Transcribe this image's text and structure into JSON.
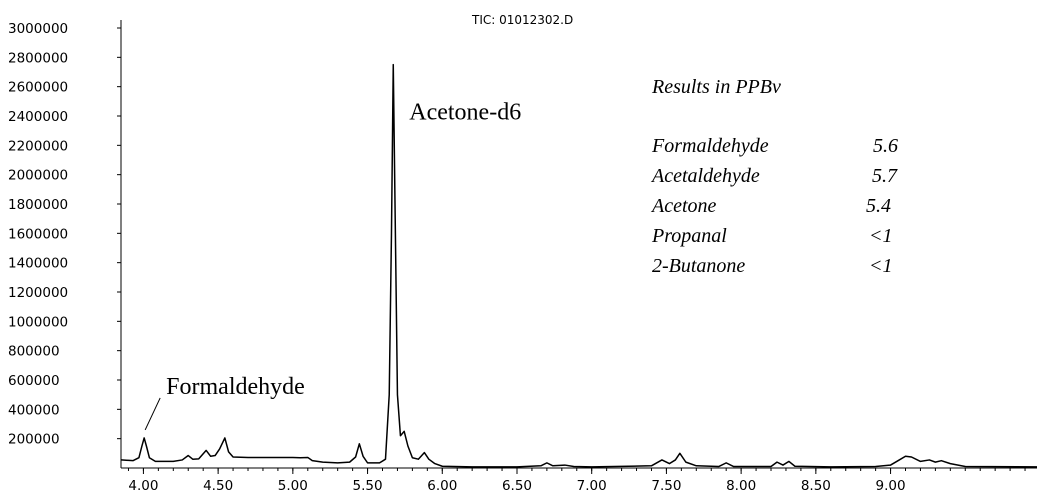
{
  "chart_data": {
    "type": "line",
    "title": "TIC: 01012302.D",
    "xlabel": "",
    "ylabel": "",
    "xlim": [
      3.85,
      9.98
    ],
    "ylim": [
      0,
      3000000
    ],
    "x_ticks": [
      "4.00",
      "4.50",
      "5.00",
      "5.50",
      "6.00",
      "6.50",
      "7.00",
      "7.50",
      "8.00",
      "8.50",
      "9.00"
    ],
    "y_ticks": [
      "200000",
      "400000",
      "600000",
      "800000",
      "1000000",
      "1200000",
      "1400000",
      "1600000",
      "1800000",
      "2000000",
      "2200000",
      "2400000",
      "2600000",
      "2800000",
      "3000000"
    ],
    "grid": false,
    "series": [
      {
        "points": [
          [
            3.85,
            55000
          ],
          [
            3.93,
            50000
          ],
          [
            3.97,
            70000
          ],
          [
            3.99,
            150000
          ],
          [
            4.005,
            205000
          ],
          [
            4.02,
            150000
          ],
          [
            4.04,
            70000
          ],
          [
            4.08,
            45000
          ],
          [
            4.2,
            45000
          ],
          [
            4.26,
            55000
          ],
          [
            4.3,
            85000
          ],
          [
            4.33,
            60000
          ],
          [
            4.37,
            62000
          ],
          [
            4.42,
            120000
          ],
          [
            4.45,
            80000
          ],
          [
            4.48,
            85000
          ],
          [
            4.51,
            130000
          ],
          [
            4.545,
            205000
          ],
          [
            4.57,
            110000
          ],
          [
            4.6,
            75000
          ],
          [
            4.7,
            72000
          ],
          [
            4.8,
            72000
          ],
          [
            4.9,
            72000
          ],
          [
            5.0,
            72000
          ],
          [
            5.05,
            70000
          ],
          [
            5.1,
            72000
          ],
          [
            5.13,
            50000
          ],
          [
            5.2,
            40000
          ],
          [
            5.3,
            35000
          ],
          [
            5.38,
            40000
          ],
          [
            5.42,
            75000
          ],
          [
            5.445,
            165000
          ],
          [
            5.47,
            80000
          ],
          [
            5.5,
            35000
          ],
          [
            5.58,
            35000
          ],
          [
            5.62,
            60000
          ],
          [
            5.645,
            500000
          ],
          [
            5.66,
            1600000
          ],
          [
            5.672,
            2750000
          ],
          [
            5.685,
            1700000
          ],
          [
            5.7,
            500000
          ],
          [
            5.72,
            220000
          ],
          [
            5.745,
            250000
          ],
          [
            5.77,
            150000
          ],
          [
            5.8,
            70000
          ],
          [
            5.84,
            60000
          ],
          [
            5.88,
            105000
          ],
          [
            5.91,
            60000
          ],
          [
            5.95,
            30000
          ],
          [
            6.0,
            12000
          ],
          [
            6.2,
            8000
          ],
          [
            6.5,
            8000
          ],
          [
            6.66,
            15000
          ],
          [
            6.7,
            35000
          ],
          [
            6.74,
            15000
          ],
          [
            6.82,
            20000
          ],
          [
            6.88,
            10000
          ],
          [
            7.0,
            8000
          ],
          [
            7.4,
            15000
          ],
          [
            7.47,
            55000
          ],
          [
            7.52,
            30000
          ],
          [
            7.56,
            55000
          ],
          [
            7.59,
            100000
          ],
          [
            7.63,
            40000
          ],
          [
            7.7,
            15000
          ],
          [
            7.85,
            10000
          ],
          [
            7.9,
            35000
          ],
          [
            7.95,
            10000
          ],
          [
            8.2,
            10000
          ],
          [
            8.24,
            40000
          ],
          [
            8.28,
            20000
          ],
          [
            8.32,
            45000
          ],
          [
            8.36,
            12000
          ],
          [
            8.6,
            8000
          ],
          [
            8.9,
            10000
          ],
          [
            9.0,
            20000
          ],
          [
            9.05,
            50000
          ],
          [
            9.1,
            80000
          ],
          [
            9.14,
            75000
          ],
          [
            9.2,
            45000
          ],
          [
            9.26,
            55000
          ],
          [
            9.3,
            40000
          ],
          [
            9.34,
            50000
          ],
          [
            9.4,
            30000
          ],
          [
            9.5,
            10000
          ],
          [
            9.98,
            8000
          ]
        ]
      }
    ],
    "annotations": [
      {
        "text": "Formaldehyde",
        "x": 4.005,
        "y": 205000,
        "arrow": true
      },
      {
        "text": "Acetone-d6",
        "x": 5.672,
        "y": 2750000,
        "arrow": false
      }
    ]
  },
  "results": {
    "heading": "Results in PPBv",
    "rows": [
      {
        "name": "Formaldehyde",
        "value": "5.6"
      },
      {
        "name": "Acetaldehyde",
        "value": "5.7"
      },
      {
        "name": "Acetone",
        "value": "5.4"
      },
      {
        "name": "Propanal",
        "value": "<1"
      },
      {
        "name": "2-Butanone",
        "value": "<1"
      }
    ]
  }
}
